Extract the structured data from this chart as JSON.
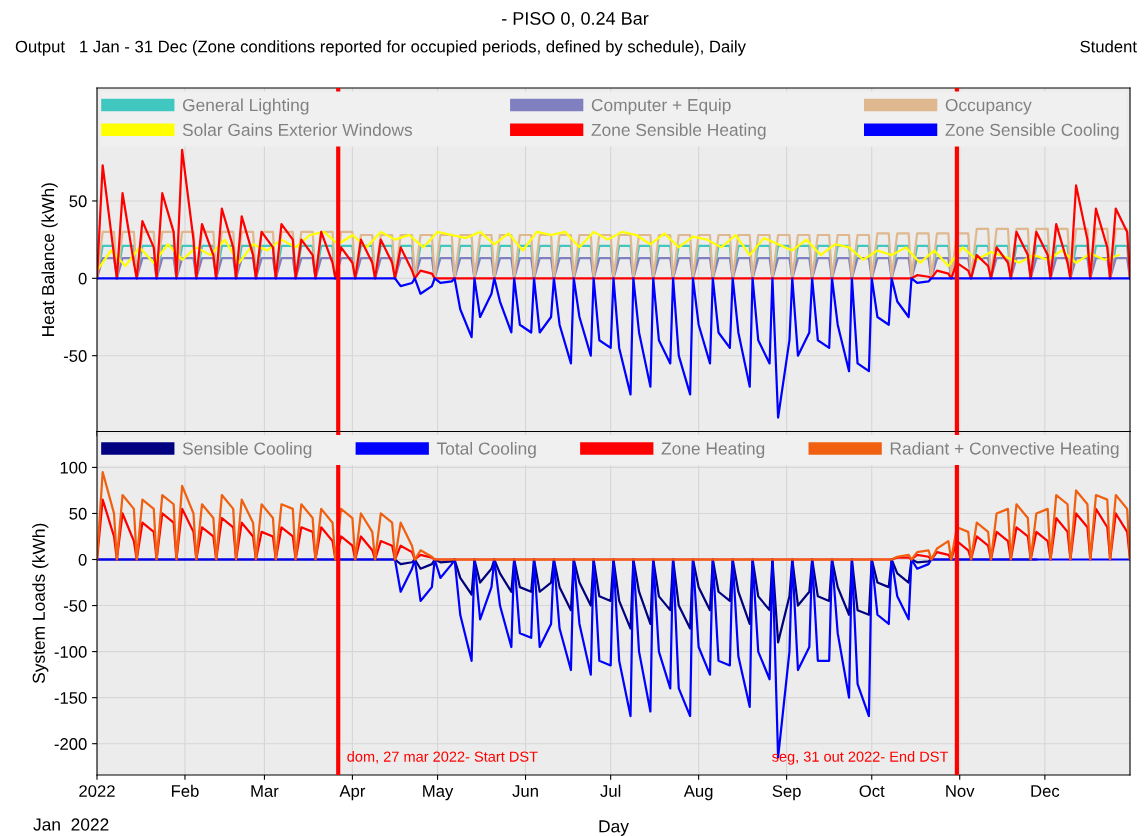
{
  "chart_data": [
    {
      "type": "line",
      "title": "- PISO 0, 0.24 Bar",
      "subtitle": "Output   1 Jan - 31 Dec (Zone conditions reported for occupied periods, defined by schedule), Daily",
      "annotations": [
        "Student"
      ],
      "ylabel": "Heat Balance (kWh)",
      "x": [
        "2022-01-01",
        "2022-01-03",
        "2022-01-07",
        "2022-01-08",
        "2022-01-10",
        "2022-01-14",
        "2022-01-15",
        "2022-01-17",
        "2022-01-21",
        "2022-01-22",
        "2022-01-24",
        "2022-01-28",
        "2022-01-29",
        "2022-01-31",
        "2022-02-04",
        "2022-02-05",
        "2022-02-07",
        "2022-02-11",
        "2022-02-12",
        "2022-02-14",
        "2022-02-18",
        "2022-02-19",
        "2022-02-21",
        "2022-02-25",
        "2022-02-26",
        "2022-02-28",
        "2022-03-04",
        "2022-03-05",
        "2022-03-07",
        "2022-03-11",
        "2022-03-12",
        "2022-03-14",
        "2022-03-18",
        "2022-03-19",
        "2022-03-21",
        "2022-03-25",
        "2022-03-26",
        "2022-03-28",
        "2022-04-01",
        "2022-04-02",
        "2022-04-04",
        "2022-04-08",
        "2022-04-09",
        "2022-04-11",
        "2022-04-15",
        "2022-04-16",
        "2022-04-18",
        "2022-04-22",
        "2022-04-23",
        "2022-04-25",
        "2022-04-29",
        "2022-04-30",
        "2022-05-02",
        "2022-05-06",
        "2022-05-07",
        "2022-05-09",
        "2022-05-13",
        "2022-05-14",
        "2022-05-16",
        "2022-05-20",
        "2022-05-21",
        "2022-05-23",
        "2022-05-27",
        "2022-05-28",
        "2022-05-30",
        "2022-06-03",
        "2022-06-04",
        "2022-06-06",
        "2022-06-10",
        "2022-06-11",
        "2022-06-13",
        "2022-06-17",
        "2022-06-18",
        "2022-06-20",
        "2022-06-24",
        "2022-06-25",
        "2022-06-27",
        "2022-07-01",
        "2022-07-02",
        "2022-07-04",
        "2022-07-08",
        "2022-07-09",
        "2022-07-11",
        "2022-07-15",
        "2022-07-16",
        "2022-07-18",
        "2022-07-22",
        "2022-07-23",
        "2022-07-25",
        "2022-07-29",
        "2022-07-30",
        "2022-08-01",
        "2022-08-05",
        "2022-08-06",
        "2022-08-08",
        "2022-08-12",
        "2022-08-13",
        "2022-08-15",
        "2022-08-19",
        "2022-08-20",
        "2022-08-22",
        "2022-08-26",
        "2022-08-27",
        "2022-08-29",
        "2022-09-02",
        "2022-09-03",
        "2022-09-05",
        "2022-09-09",
        "2022-09-10",
        "2022-09-12",
        "2022-09-16",
        "2022-09-17",
        "2022-09-19",
        "2022-09-23",
        "2022-09-24",
        "2022-09-26",
        "2022-09-30",
        "2022-10-01",
        "2022-10-03",
        "2022-10-07",
        "2022-10-08",
        "2022-10-10",
        "2022-10-14",
        "2022-10-15",
        "2022-10-17",
        "2022-10-21",
        "2022-10-22",
        "2022-10-24",
        "2022-10-28",
        "2022-10-29",
        "2022-10-31",
        "2022-11-04",
        "2022-11-05",
        "2022-11-07",
        "2022-11-11",
        "2022-11-12",
        "2022-11-14",
        "2022-11-18",
        "2022-11-19",
        "2022-11-21",
        "2022-11-25",
        "2022-11-26",
        "2022-11-28",
        "2022-12-02",
        "2022-12-03",
        "2022-12-05",
        "2022-12-09",
        "2022-12-10",
        "2022-12-12",
        "2022-12-16",
        "2022-12-17",
        "2022-12-19",
        "2022-12-23",
        "2022-12-24",
        "2022-12-26",
        "2022-12-30",
        "2022-12-31"
      ],
      "xlim": [
        "2022-01-01",
        "2022-12-31"
      ],
      "xticks": [
        {
          "value": "2022-01-01",
          "label": null
        },
        {
          "value": "2022-02-01",
          "label": null
        },
        {
          "value": "2022-03-01",
          "label": null
        },
        {
          "value": "2022-04-01",
          "label": null
        },
        {
          "value": "2022-05-01",
          "label": null
        },
        {
          "value": "2022-06-01",
          "label": null
        },
        {
          "value": "2022-07-01",
          "label": null
        },
        {
          "value": "2022-08-01",
          "label": null
        },
        {
          "value": "2022-09-01",
          "label": null
        },
        {
          "value": "2022-10-01",
          "label": null
        },
        {
          "value": "2022-11-01",
          "label": null
        },
        {
          "value": "2022-12-01",
          "label": null
        }
      ],
      "ylim": [
        -99,
        123
      ],
      "yticks": [
        -50,
        0,
        50
      ],
      "tick_labels": "y",
      "grid": true,
      "legend": "top",
      "ref_lines": [
        {
          "axis": "x",
          "value": "2022-03-27",
          "color": "#ff0000"
        },
        {
          "axis": "x",
          "value": "2022-10-31",
          "color": "#ff0000"
        }
      ],
      "series": [
        {
          "name": "General Lighting",
          "color": "#40c8c0",
          "values": [
            0,
            21,
            21,
            0,
            21,
            21,
            0,
            21,
            21,
            0,
            21,
            21,
            0,
            21,
            21,
            0,
            21,
            21,
            0,
            21,
            21,
            0,
            21,
            21,
            0,
            21,
            21,
            0,
            21,
            21,
            0,
            21,
            21,
            0,
            21,
            21,
            0,
            21,
            21,
            0,
            21,
            21,
            0,
            21,
            21,
            0,
            21,
            21,
            0,
            21,
            21,
            0,
            21,
            21,
            0,
            21,
            21,
            0,
            21,
            21,
            0,
            21,
            21,
            0,
            21,
            21,
            0,
            21,
            21,
            0,
            21,
            21,
            0,
            21,
            21,
            0,
            21,
            21,
            0,
            21,
            21,
            0,
            21,
            21,
            0,
            21,
            21,
            0,
            21,
            21,
            0,
            21,
            21,
            0,
            21,
            21,
            0,
            21,
            21,
            0,
            21,
            21,
            0,
            21,
            21,
            0,
            21,
            21,
            0,
            21,
            21,
            0,
            21,
            21,
            0,
            21,
            21,
            0,
            21,
            21,
            0,
            21,
            21,
            0,
            21,
            21,
            0,
            21,
            21,
            0,
            21,
            21,
            0,
            21,
            21,
            0,
            21,
            21,
            0,
            21,
            21,
            0,
            21,
            21,
            0,
            21,
            21,
            0,
            21,
            21,
            0,
            21,
            21,
            0,
            21,
            21,
            0
          ]
        },
        {
          "name": "Computer + Equip",
          "color": "#8080c0",
          "values": [
            0,
            13,
            13,
            0,
            13,
            13,
            0,
            13,
            13,
            0,
            13,
            13,
            0,
            13,
            13,
            0,
            13,
            13,
            0,
            13,
            13,
            0,
            13,
            13,
            0,
            13,
            13,
            0,
            13,
            13,
            0,
            13,
            13,
            0,
            13,
            13,
            0,
            13,
            13,
            0,
            13,
            13,
            0,
            13,
            13,
            0,
            13,
            13,
            0,
            13,
            13,
            0,
            13,
            13,
            0,
            13,
            13,
            0,
            13,
            13,
            0,
            13,
            13,
            0,
            13,
            13,
            0,
            13,
            13,
            0,
            13,
            13,
            0,
            13,
            13,
            0,
            13,
            13,
            0,
            13,
            13,
            0,
            13,
            13,
            0,
            13,
            13,
            0,
            13,
            13,
            0,
            13,
            13,
            0,
            13,
            13,
            0,
            13,
            13,
            0,
            13,
            13,
            0,
            13,
            13,
            0,
            13,
            13,
            0,
            13,
            13,
            0,
            13,
            13,
            0,
            13,
            13,
            0,
            13,
            13,
            0,
            13,
            13,
            0,
            13,
            13,
            0,
            13,
            13,
            0,
            13,
            13,
            0,
            13,
            13,
            0,
            13,
            13,
            0,
            13,
            13,
            0,
            13,
            13,
            0,
            13,
            13,
            0,
            13,
            13,
            0,
            13,
            13,
            0,
            13,
            13,
            0
          ]
        },
        {
          "name": "Occupancy",
          "color": "#e0b890",
          "values": [
            0,
            30,
            30,
            0,
            30,
            30,
            0,
            30,
            30,
            0,
            30,
            30,
            0,
            30,
            30,
            0,
            30,
            30,
            0,
            30,
            30,
            0,
            30,
            30,
            0,
            30,
            30,
            0,
            30,
            30,
            0,
            30,
            30,
            0,
            30,
            30,
            0,
            30,
            30,
            0,
            28,
            28,
            0,
            28,
            28,
            0,
            28,
            28,
            0,
            28,
            28,
            0,
            28,
            28,
            0,
            28,
            28,
            0,
            28,
            28,
            0,
            28,
            28,
            0,
            28,
            28,
            0,
            28,
            28,
            0,
            28,
            28,
            0,
            28,
            28,
            0,
            28,
            28,
            0,
            28,
            28,
            0,
            28,
            28,
            0,
            28,
            28,
            0,
            28,
            28,
            0,
            28,
            28,
            0,
            28,
            28,
            0,
            28,
            28,
            0,
            28,
            28,
            0,
            28,
            28,
            0,
            28,
            28,
            0,
            28,
            28,
            0,
            28,
            28,
            0,
            28,
            28,
            0,
            29,
            29,
            0,
            29,
            29,
            0,
            29,
            29,
            0,
            29,
            29,
            0,
            29,
            29,
            0,
            32,
            32,
            0,
            32,
            32,
            0,
            32,
            32,
            0,
            32,
            32,
            0,
            32,
            32,
            0,
            32,
            32,
            0,
            32,
            32,
            0,
            32,
            32,
            0
          ]
        },
        {
          "name": "Solar Gains Exterior Windows",
          "color": "#ffff00",
          "x": [
            "2022-01-01",
            "2022-01-06",
            "2022-01-11",
            "2022-01-16",
            "2022-01-21",
            "2022-01-26",
            "2022-01-31",
            "2022-02-05",
            "2022-02-10",
            "2022-02-15",
            "2022-02-20",
            "2022-02-25",
            "2022-03-02",
            "2022-03-07",
            "2022-03-12",
            "2022-03-17",
            "2022-03-22",
            "2022-03-27",
            "2022-04-01",
            "2022-04-06",
            "2022-04-11",
            "2022-04-16",
            "2022-04-21",
            "2022-04-26",
            "2022-05-01",
            "2022-05-06",
            "2022-05-11",
            "2022-05-16",
            "2022-05-21",
            "2022-05-26",
            "2022-05-31",
            "2022-06-05",
            "2022-06-10",
            "2022-06-15",
            "2022-06-20",
            "2022-06-25",
            "2022-06-30",
            "2022-07-05",
            "2022-07-10",
            "2022-07-15",
            "2022-07-20",
            "2022-07-25",
            "2022-07-30",
            "2022-08-04",
            "2022-08-09",
            "2022-08-14",
            "2022-08-19",
            "2022-08-24",
            "2022-08-29",
            "2022-09-03",
            "2022-09-08",
            "2022-09-13",
            "2022-09-18",
            "2022-09-23",
            "2022-09-28",
            "2022-10-03",
            "2022-10-08",
            "2022-10-13",
            "2022-10-18",
            "2022-10-23",
            "2022-10-28",
            "2022-11-02",
            "2022-11-07",
            "2022-11-12",
            "2022-11-17",
            "2022-11-22",
            "2022-11-27",
            "2022-12-02",
            "2022-12-07",
            "2022-12-12",
            "2022-12-17",
            "2022-12-22",
            "2022-12-27"
          ],
          "values": [
            5,
            18,
            8,
            20,
            10,
            22,
            12,
            20,
            15,
            25,
            10,
            22,
            18,
            25,
            20,
            28,
            30,
            22,
            28,
            20,
            30,
            25,
            28,
            20,
            30,
            28,
            26,
            30,
            22,
            29,
            18,
            30,
            28,
            30,
            20,
            30,
            25,
            30,
            28,
            22,
            29,
            20,
            27,
            25,
            20,
            28,
            15,
            26,
            22,
            18,
            25,
            15,
            22,
            20,
            12,
            18,
            15,
            20,
            10,
            18,
            8,
            20,
            12,
            17,
            14,
            10,
            15,
            12,
            18,
            10,
            16,
            12,
            15
          ]
        },
        {
          "name": "Zone Sensible Heating",
          "color": "#ff0000",
          "values": [
            0,
            73,
            15,
            0,
            55,
            10,
            0,
            37,
            20,
            0,
            55,
            30,
            0,
            83,
            25,
            0,
            35,
            15,
            0,
            45,
            20,
            0,
            40,
            15,
            0,
            30,
            20,
            0,
            35,
            25,
            0,
            25,
            15,
            0,
            30,
            10,
            0,
            20,
            10,
            0,
            25,
            10,
            0,
            25,
            10,
            0,
            20,
            5,
            0,
            5,
            3,
            0,
            0,
            0,
            0,
            0,
            0,
            0,
            0,
            0,
            0,
            0,
            0,
            0,
            0,
            0,
            0,
            0,
            0,
            0,
            0,
            0,
            0,
            0,
            0,
            0,
            0,
            0,
            0,
            0,
            0,
            0,
            0,
            0,
            0,
            0,
            0,
            0,
            0,
            0,
            0,
            0,
            0,
            0,
            0,
            0,
            0,
            0,
            0,
            0,
            0,
            0,
            0,
            0,
            0,
            0,
            0,
            0,
            0,
            0,
            0,
            0,
            0,
            0,
            0,
            0,
            0,
            0,
            0,
            0,
            0,
            0,
            0,
            0,
            2,
            1,
            0,
            5,
            3,
            0,
            10,
            5,
            0,
            15,
            8,
            0,
            20,
            10,
            0,
            30,
            15,
            0,
            30,
            15,
            0,
            35,
            10,
            0,
            60,
            25,
            0,
            45,
            20,
            0,
            45,
            30,
            0
          ]
        },
        {
          "name": "Zone Sensible Cooling",
          "color": "#0000ff",
          "values": [
            0,
            0,
            0,
            0,
            0,
            0,
            0,
            0,
            0,
            0,
            0,
            0,
            0,
            0,
            0,
            0,
            0,
            0,
            0,
            0,
            0,
            0,
            0,
            0,
            0,
            0,
            0,
            0,
            0,
            0,
            0,
            0,
            0,
            0,
            0,
            0,
            0,
            0,
            0,
            0,
            0,
            0,
            0,
            0,
            0,
            0,
            -5,
            -3,
            0,
            -10,
            -5,
            0,
            -3,
            -2,
            0,
            -20,
            -38,
            0,
            -25,
            -10,
            0,
            -15,
            -35,
            0,
            -30,
            -35,
            0,
            -35,
            -25,
            0,
            -30,
            -55,
            0,
            -25,
            -50,
            0,
            -40,
            -45,
            0,
            -45,
            -75,
            0,
            -35,
            -70,
            0,
            -40,
            -55,
            0,
            -50,
            -75,
            0,
            -30,
            -55,
            0,
            -35,
            -45,
            0,
            -35,
            -70,
            0,
            -40,
            -55,
            0,
            -90,
            -40,
            0,
            -50,
            -35,
            0,
            -40,
            -45,
            0,
            -30,
            -60,
            0,
            -55,
            -60,
            0,
            -25,
            -30,
            0,
            -15,
            -25,
            0,
            -3,
            -2,
            0,
            0,
            0,
            0,
            0,
            0,
            0,
            0,
            0,
            0,
            0,
            0,
            0,
            0,
            0,
            0,
            0,
            0,
            0,
            0,
            0,
            0,
            0,
            0,
            0,
            0,
            0,
            0,
            0,
            0,
            0
          ]
        }
      ]
    },
    {
      "type": "line",
      "xlabel": "Day",
      "ylabel": "System Loads (kWh)",
      "annotations": [
        "Jan  2022"
      ],
      "x": [
        "2022-01-01",
        "2022-01-03",
        "2022-01-07",
        "2022-01-08",
        "2022-01-10",
        "2022-01-14",
        "2022-01-15",
        "2022-01-17",
        "2022-01-21",
        "2022-01-22",
        "2022-01-24",
        "2022-01-28",
        "2022-01-29",
        "2022-01-31",
        "2022-02-04",
        "2022-02-05",
        "2022-02-07",
        "2022-02-11",
        "2022-02-12",
        "2022-02-14",
        "2022-02-18",
        "2022-02-19",
        "2022-02-21",
        "2022-02-25",
        "2022-02-26",
        "2022-02-28",
        "2022-03-04",
        "2022-03-05",
        "2022-03-07",
        "2022-03-11",
        "2022-03-12",
        "2022-03-14",
        "2022-03-18",
        "2022-03-19",
        "2022-03-21",
        "2022-03-25",
        "2022-03-26",
        "2022-03-28",
        "2022-04-01",
        "2022-04-02",
        "2022-04-04",
        "2022-04-08",
        "2022-04-09",
        "2022-04-11",
        "2022-04-15",
        "2022-04-16",
        "2022-04-18",
        "2022-04-22",
        "2022-04-23",
        "2022-04-25",
        "2022-04-29",
        "2022-04-30",
        "2022-05-02",
        "2022-05-06",
        "2022-05-07",
        "2022-05-09",
        "2022-05-13",
        "2022-05-14",
        "2022-05-16",
        "2022-05-20",
        "2022-05-21",
        "2022-05-23",
        "2022-05-27",
        "2022-05-28",
        "2022-05-30",
        "2022-06-03",
        "2022-06-04",
        "2022-06-06",
        "2022-06-10",
        "2022-06-11",
        "2022-06-13",
        "2022-06-17",
        "2022-06-18",
        "2022-06-20",
        "2022-06-24",
        "2022-06-25",
        "2022-06-27",
        "2022-07-01",
        "2022-07-02",
        "2022-07-04",
        "2022-07-08",
        "2022-07-09",
        "2022-07-11",
        "2022-07-15",
        "2022-07-16",
        "2022-07-18",
        "2022-07-22",
        "2022-07-23",
        "2022-07-25",
        "2022-07-29",
        "2022-07-30",
        "2022-08-01",
        "2022-08-05",
        "2022-08-06",
        "2022-08-08",
        "2022-08-12",
        "2022-08-13",
        "2022-08-15",
        "2022-08-19",
        "2022-08-20",
        "2022-08-22",
        "2022-08-26",
        "2022-08-27",
        "2022-08-29",
        "2022-09-02",
        "2022-09-03",
        "2022-09-05",
        "2022-09-09",
        "2022-09-10",
        "2022-09-12",
        "2022-09-16",
        "2022-09-17",
        "2022-09-19",
        "2022-09-23",
        "2022-09-24",
        "2022-09-26",
        "2022-09-30",
        "2022-10-01",
        "2022-10-03",
        "2022-10-07",
        "2022-10-08",
        "2022-10-10",
        "2022-10-14",
        "2022-10-15",
        "2022-10-17",
        "2022-10-21",
        "2022-10-22",
        "2022-10-24",
        "2022-10-28",
        "2022-10-29",
        "2022-10-31",
        "2022-11-04",
        "2022-11-05",
        "2022-11-07",
        "2022-11-11",
        "2022-11-12",
        "2022-11-14",
        "2022-11-18",
        "2022-11-19",
        "2022-11-21",
        "2022-11-25",
        "2022-11-26",
        "2022-11-28",
        "2022-12-02",
        "2022-12-03",
        "2022-12-05",
        "2022-12-09",
        "2022-12-10",
        "2022-12-12",
        "2022-12-16",
        "2022-12-17",
        "2022-12-19",
        "2022-12-23",
        "2022-12-24",
        "2022-12-26",
        "2022-12-30",
        "2022-12-31"
      ],
      "xlim": [
        "2022-01-01",
        "2022-12-31"
      ],
      "xticks": [
        {
          "value": "2022-01-01",
          "label": "2022"
        },
        {
          "value": "2022-02-01",
          "label": "Feb"
        },
        {
          "value": "2022-03-01",
          "label": "Mar"
        },
        {
          "value": "2022-04-01",
          "label": "Apr"
        },
        {
          "value": "2022-05-01",
          "label": "May"
        },
        {
          "value": "2022-06-01",
          "label": "Jun"
        },
        {
          "value": "2022-07-01",
          "label": "Jul"
        },
        {
          "value": "2022-08-01",
          "label": "Aug"
        },
        {
          "value": "2022-09-01",
          "label": "Sep"
        },
        {
          "value": "2022-10-01",
          "label": "Oct"
        },
        {
          "value": "2022-11-01",
          "label": "Nov"
        },
        {
          "value": "2022-12-01",
          "label": "Dec"
        }
      ],
      "ylim": [
        -234,
        139
      ],
      "yticks": [
        -200,
        -150,
        -100,
        -50,
        0,
        50,
        100
      ],
      "grid": true,
      "legend": "top",
      "ref_lines": [
        {
          "axis": "x",
          "value": "2022-03-27",
          "label": "dom, 27 mar 2022- Start DST",
          "color": "#ff0000"
        },
        {
          "axis": "x",
          "value": "2022-10-31",
          "label": "seg, 31 out 2022- End DST",
          "color": "#ff0000"
        }
      ],
      "series": [
        {
          "name": "Sensible Cooling",
          "color": "#000080",
          "values": [
            0,
            0,
            0,
            0,
            0,
            0,
            0,
            0,
            0,
            0,
            0,
            0,
            0,
            0,
            0,
            0,
            0,
            0,
            0,
            0,
            0,
            0,
            0,
            0,
            0,
            0,
            0,
            0,
            0,
            0,
            0,
            0,
            0,
            0,
            0,
            0,
            0,
            0,
            0,
            0,
            0,
            0,
            0,
            0,
            0,
            0,
            -5,
            -3,
            0,
            -10,
            -5,
            0,
            -3,
            -2,
            0,
            -20,
            -38,
            0,
            -25,
            -10,
            0,
            -15,
            -35,
            0,
            -30,
            -35,
            0,
            -35,
            -25,
            0,
            -30,
            -55,
            0,
            -25,
            -50,
            0,
            -40,
            -45,
            0,
            -45,
            -75,
            0,
            -35,
            -70,
            0,
            -40,
            -55,
            0,
            -50,
            -75,
            0,
            -30,
            -55,
            0,
            -35,
            -45,
            0,
            -35,
            -70,
            0,
            -40,
            -55,
            0,
            -90,
            -40,
            0,
            -50,
            -35,
            0,
            -40,
            -45,
            0,
            -30,
            -60,
            0,
            -55,
            -60,
            0,
            -25,
            -30,
            0,
            -15,
            -25,
            0,
            -3,
            -2,
            0,
            0,
            0,
            0,
            0,
            0,
            0,
            0,
            0,
            0,
            0,
            0,
            0,
            0,
            0,
            0,
            0,
            null,
            null,
            null,
            null,
            null,
            null,
            null,
            null,
            null,
            null,
            null,
            null,
            null,
            null
          ]
        },
        {
          "name": "Total Cooling",
          "color": "#0000ff",
          "values": [
            0,
            0,
            0,
            0,
            0,
            0,
            0,
            0,
            0,
            0,
            0,
            0,
            0,
            0,
            0,
            0,
            0,
            0,
            0,
            0,
            0,
            0,
            0,
            0,
            0,
            0,
            0,
            0,
            0,
            0,
            0,
            0,
            0,
            0,
            0,
            0,
            0,
            0,
            0,
            0,
            0,
            0,
            0,
            0,
            0,
            0,
            -35,
            -10,
            0,
            -45,
            -30,
            0,
            -20,
            -5,
            0,
            -60,
            -110,
            0,
            -65,
            -30,
            0,
            -50,
            -95,
            0,
            -80,
            -85,
            0,
            -95,
            -70,
            0,
            -75,
            -120,
            0,
            -70,
            -125,
            0,
            -110,
            -115,
            0,
            -110,
            -170,
            0,
            -100,
            -165,
            0,
            -100,
            -140,
            0,
            -140,
            -170,
            0,
            -95,
            -125,
            0,
            -110,
            -115,
            0,
            -105,
            -160,
            0,
            -100,
            -130,
            0,
            -215,
            -100,
            0,
            -120,
            -95,
            0,
            -110,
            -110,
            0,
            -80,
            -150,
            0,
            -135,
            -170,
            0,
            -60,
            -70,
            0,
            -40,
            -65,
            0,
            -10,
            -5,
            0,
            0,
            0,
            0,
            0,
            0,
            0,
            0,
            0,
            0,
            0,
            0,
            0,
            0,
            0,
            0,
            0,
            0,
            0,
            0,
            0,
            0,
            0,
            0,
            0,
            0,
            0,
            0,
            0,
            0,
            0
          ]
        },
        {
          "name": "Zone Heating",
          "color": "#ff0000",
          "values": [
            0,
            65,
            25,
            0,
            50,
            20,
            0,
            40,
            30,
            0,
            50,
            40,
            0,
            55,
            30,
            0,
            35,
            25,
            0,
            45,
            35,
            0,
            40,
            25,
            0,
            30,
            25,
            0,
            35,
            25,
            0,
            35,
            30,
            0,
            35,
            20,
            0,
            25,
            15,
            0,
            25,
            10,
            0,
            20,
            15,
            0,
            15,
            8,
            0,
            5,
            2,
            0,
            0,
            0,
            0,
            0,
            0,
            0,
            0,
            0,
            0,
            0,
            0,
            0,
            0,
            0,
            0,
            0,
            0,
            0,
            0,
            0,
            0,
            0,
            0,
            0,
            0,
            0,
            0,
            0,
            0,
            0,
            0,
            0,
            0,
            0,
            0,
            0,
            0,
            0,
            0,
            0,
            0,
            0,
            0,
            0,
            0,
            0,
            0,
            0,
            0,
            0,
            0,
            0,
            0,
            0,
            0,
            0,
            0,
            0,
            0,
            0,
            0,
            0,
            0,
            0,
            0,
            0,
            0,
            0,
            0,
            2,
            2,
            0,
            5,
            3,
            0,
            8,
            5,
            0,
            20,
            10,
            0,
            25,
            15,
            0,
            30,
            20,
            0,
            35,
            25,
            0,
            30,
            20,
            0,
            45,
            30,
            0,
            50,
            35,
            0,
            55,
            35,
            0,
            50,
            30,
            0
          ]
        },
        {
          "name": "Radiant + Convective Heating",
          "color": "#f06010",
          "values": [
            0,
            95,
            50,
            0,
            70,
            55,
            0,
            65,
            55,
            0,
            70,
            60,
            0,
            80,
            50,
            0,
            60,
            45,
            0,
            70,
            55,
            0,
            65,
            40,
            0,
            60,
            45,
            0,
            60,
            55,
            0,
            60,
            45,
            0,
            55,
            40,
            0,
            55,
            45,
            0,
            50,
            30,
            0,
            50,
            40,
            0,
            40,
            15,
            0,
            10,
            3,
            0,
            0,
            0,
            0,
            0,
            0,
            0,
            0,
            0,
            0,
            0,
            0,
            0,
            0,
            0,
            0,
            0,
            0,
            0,
            0,
            0,
            0,
            0,
            0,
            0,
            0,
            0,
            0,
            0,
            0,
            0,
            0,
            0,
            0,
            0,
            0,
            0,
            0,
            0,
            0,
            0,
            0,
            0,
            0,
            0,
            0,
            0,
            0,
            0,
            0,
            0,
            0,
            0,
            0,
            0,
            0,
            0,
            0,
            0,
            0,
            0,
            0,
            0,
            0,
            0,
            0,
            0,
            0,
            0,
            0,
            3,
            5,
            0,
            8,
            10,
            0,
            12,
            20,
            0,
            35,
            30,
            0,
            40,
            30,
            0,
            50,
            55,
            0,
            60,
            45,
            0,
            50,
            55,
            0,
            70,
            60,
            0,
            75,
            60,
            0,
            70,
            65,
            0,
            70,
            55,
            0
          ]
        }
      ]
    }
  ]
}
